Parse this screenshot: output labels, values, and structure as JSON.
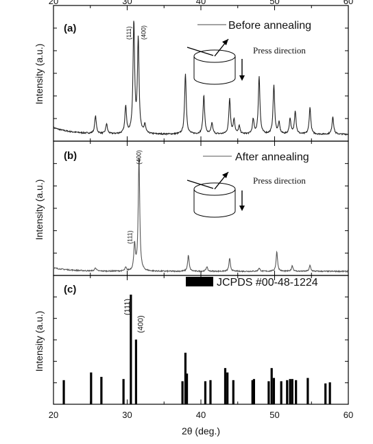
{
  "chart_data": [
    {
      "panel": "(a)",
      "type": "line",
      "ylabel": "Intensity (a.u.)",
      "legend": "Before annealing",
      "inset_text": "Press direction",
      "xlim": [
        20,
        60
      ],
      "peaks": [
        [
          25.7,
          0.16
        ],
        [
          27.2,
          0.09
        ],
        [
          29.8,
          0.25
        ],
        [
          30.9,
          1.0
        ],
        [
          31.5,
          0.85
        ],
        [
          32.4,
          0.08
        ],
        [
          37.9,
          0.55
        ],
        [
          40.4,
          0.35
        ],
        [
          41.5,
          0.1
        ],
        [
          43.9,
          0.32
        ],
        [
          44.5,
          0.13
        ],
        [
          45.2,
          0.07
        ],
        [
          47.1,
          0.13
        ],
        [
          47.9,
          0.52
        ],
        [
          49.9,
          0.44
        ],
        [
          50.6,
          0.1
        ],
        [
          52.1,
          0.14
        ],
        [
          52.8,
          0.21
        ],
        [
          54.8,
          0.24
        ],
        [
          57.9,
          0.16
        ]
      ],
      "annotations": [
        {
          "text": "(111)",
          "x": 30.9
        },
        {
          "text": "(400)",
          "x": 31.5
        }
      ]
    },
    {
      "panel": "(b)",
      "type": "line",
      "ylabel": "Intensity (a.u.)",
      "legend": "After annealing",
      "inset_text": "Press direction",
      "xlim": [
        20,
        60
      ],
      "peaks": [
        [
          25.7,
          0.03
        ],
        [
          29.8,
          0.03
        ],
        [
          31.0,
          0.23
        ],
        [
          31.6,
          1.0
        ],
        [
          38.3,
          0.14
        ],
        [
          40.8,
          0.04
        ],
        [
          43.9,
          0.11
        ],
        [
          47.9,
          0.03
        ],
        [
          50.3,
          0.17
        ],
        [
          52.4,
          0.05
        ],
        [
          54.8,
          0.05
        ]
      ],
      "annotations": [
        {
          "text": "(111)",
          "x": 31.0
        },
        {
          "text": "(400)",
          "x": 31.6
        }
      ]
    },
    {
      "panel": "(c)",
      "type": "bar",
      "ylabel": "Intensity (a.u.)",
      "legend": "JCPDS #00-48-1224",
      "xlabel": "2θ (deg.)",
      "xlim": [
        20,
        60
      ],
      "xticks": [
        20,
        30,
        40,
        50,
        60
      ],
      "x": [
        21.4,
        25.1,
        26.5,
        29.5,
        30.5,
        31.2,
        37.5,
        37.9,
        38.1,
        40.6,
        41.3,
        43.3,
        43.6,
        44.4,
        47.0,
        47.2,
        49.2,
        49.6,
        49.9,
        50.9,
        51.7,
        52.1,
        52.4,
        52.9,
        54.5,
        56.9,
        57.5
      ],
      "values": [
        0.22,
        0.29,
        0.25,
        0.23,
        1.0,
        0.59,
        0.21,
        0.47,
        0.28,
        0.21,
        0.22,
        0.33,
        0.29,
        0.22,
        0.22,
        0.23,
        0.21,
        0.33,
        0.24,
        0.21,
        0.22,
        0.23,
        0.23,
        0.22,
        0.24,
        0.19,
        0.2
      ],
      "annotations": [
        {
          "text": "(111)",
          "x": 30.5
        },
        {
          "text": "(400)",
          "x": 31.2
        }
      ]
    }
  ]
}
